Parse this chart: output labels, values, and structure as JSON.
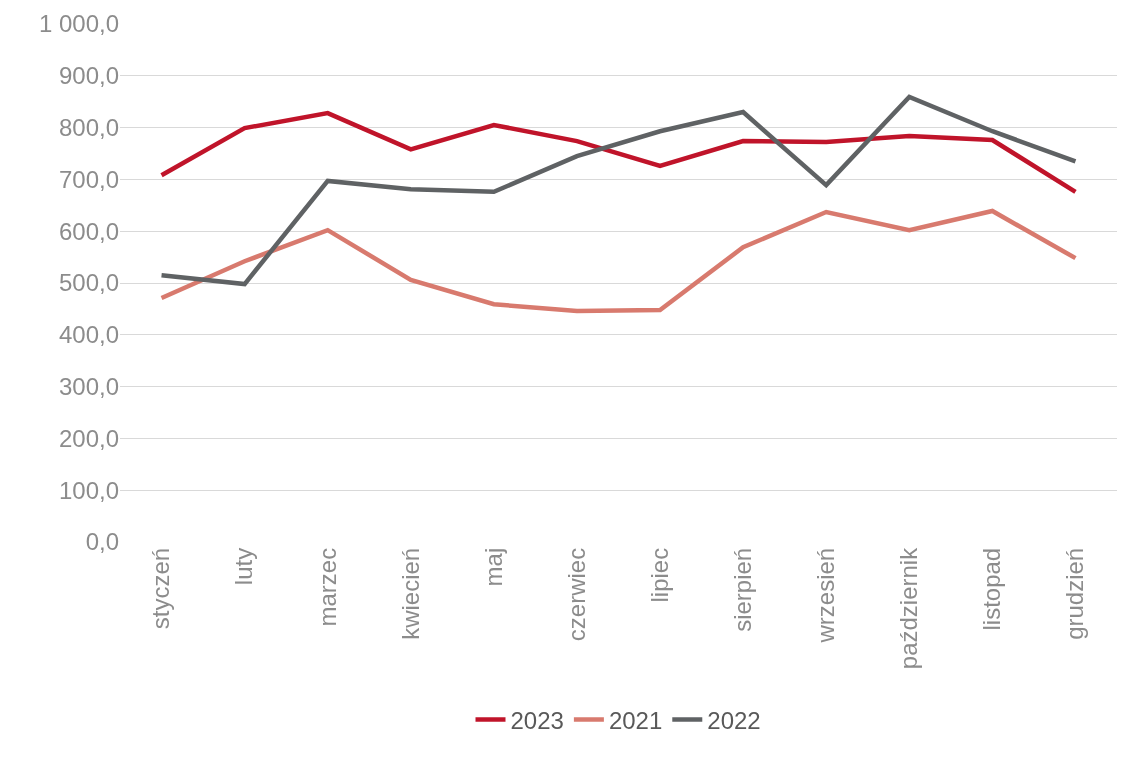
{
  "chart_data": {
    "type": "line",
    "categories": [
      "styczeń",
      "luty",
      "marzec",
      "kwiecień",
      "maj",
      "czerwiec",
      "lipiec",
      "sierpień",
      "wrzesień",
      "październik",
      "listopad",
      "grudzień"
    ],
    "series": [
      {
        "name": "2023",
        "color": "#c0142a",
        "values": [
          708,
          799,
          828,
          758,
          805,
          774,
          726,
          774,
          772,
          784,
          776,
          676
        ]
      },
      {
        "name": "2021",
        "color": "#d87a6e",
        "values": [
          471,
          542,
          602,
          506,
          459,
          446,
          448,
          569,
          637,
          602,
          639,
          548
        ]
      },
      {
        "name": "2022",
        "color": "#5f6264",
        "values": [
          515,
          498,
          697,
          681,
          676,
          745,
          793,
          830,
          689,
          859,
          793,
          735
        ]
      }
    ],
    "ylim": [
      0,
      1000
    ],
    "yticks": [
      {
        "value": 0,
        "label": "0,0"
      },
      {
        "value": 100,
        "label": "100,0"
      },
      {
        "value": 200,
        "label": "200,0"
      },
      {
        "value": 300,
        "label": "300,0"
      },
      {
        "value": 400,
        "label": "400,0"
      },
      {
        "value": 500,
        "label": "500,0"
      },
      {
        "value": 600,
        "label": "600,0"
      },
      {
        "value": 700,
        "label": "700,0"
      },
      {
        "value": 800,
        "label": "800,0"
      },
      {
        "value": 900,
        "label": "900,0"
      },
      {
        "value": 1000,
        "label": "1 000,0"
      }
    ],
    "grid": "y",
    "legend": "bottom",
    "marker": "none",
    "line_style": "solid"
  }
}
